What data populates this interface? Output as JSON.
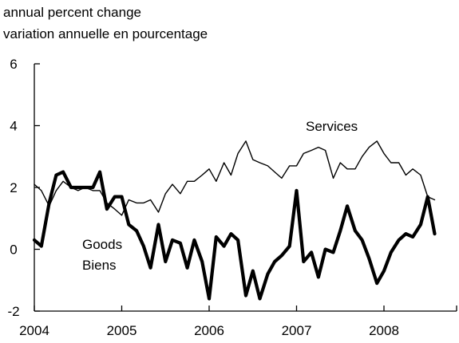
{
  "chart_data": {
    "type": "line",
    "title": "",
    "unit_label_en": "annual percent change",
    "unit_label_fr": "variation annuelle en pourcentage",
    "xlabel": "",
    "ylabel": "",
    "xlim": [
      2004.0,
      2008.85
    ],
    "ylim": [
      -2,
      6
    ],
    "x_ticks": [
      2004,
      2005,
      2006,
      2007,
      2008
    ],
    "x_tick_labels": [
      "2004",
      "2005",
      "2006",
      "2007",
      "2008"
    ],
    "y_ticks": [
      -2,
      0,
      2,
      4,
      6
    ],
    "y_tick_labels": [
      "-2",
      "0",
      "2",
      "4",
      "6"
    ],
    "grid": false,
    "legend": "none",
    "series": [
      {
        "name": "Services",
        "label_lines": [
          "Services"
        ],
        "line_weight": "thin",
        "color": "#000000",
        "points": [
          [
            2004.0,
            2.1
          ],
          [
            2004.08,
            1.9
          ],
          [
            2004.17,
            1.4
          ],
          [
            2004.25,
            1.9
          ],
          [
            2004.33,
            2.2
          ],
          [
            2004.42,
            2.0
          ],
          [
            2004.5,
            1.9
          ],
          [
            2004.58,
            2.0
          ],
          [
            2004.67,
            1.9
          ],
          [
            2004.75,
            1.9
          ],
          [
            2004.83,
            1.5
          ],
          [
            2004.92,
            1.3
          ],
          [
            2005.0,
            1.1
          ],
          [
            2005.08,
            1.6
          ],
          [
            2005.17,
            1.5
          ],
          [
            2005.25,
            1.5
          ],
          [
            2005.33,
            1.6
          ],
          [
            2005.42,
            1.2
          ],
          [
            2005.5,
            1.8
          ],
          [
            2005.58,
            2.1
          ],
          [
            2005.67,
            1.8
          ],
          [
            2005.75,
            2.2
          ],
          [
            2005.83,
            2.2
          ],
          [
            2005.92,
            2.4
          ],
          [
            2006.0,
            2.6
          ],
          [
            2006.08,
            2.2
          ],
          [
            2006.17,
            2.8
          ],
          [
            2006.25,
            2.4
          ],
          [
            2006.33,
            3.1
          ],
          [
            2006.42,
            3.5
          ],
          [
            2006.5,
            2.9
          ],
          [
            2006.58,
            2.8
          ],
          [
            2006.67,
            2.7
          ],
          [
            2006.75,
            2.5
          ],
          [
            2006.83,
            2.3
          ],
          [
            2006.92,
            2.7
          ],
          [
            2007.0,
            2.7
          ],
          [
            2007.08,
            3.1
          ],
          [
            2007.17,
            3.2
          ],
          [
            2007.25,
            3.3
          ],
          [
            2007.33,
            3.2
          ],
          [
            2007.42,
            2.3
          ],
          [
            2007.5,
            2.8
          ],
          [
            2007.58,
            2.6
          ],
          [
            2007.67,
            2.6
          ],
          [
            2007.75,
            3.0
          ],
          [
            2007.83,
            3.3
          ],
          [
            2007.92,
            3.5
          ],
          [
            2008.0,
            3.1
          ],
          [
            2008.08,
            2.8
          ],
          [
            2008.17,
            2.8
          ],
          [
            2008.25,
            2.4
          ],
          [
            2008.33,
            2.6
          ],
          [
            2008.42,
            2.4
          ],
          [
            2008.5,
            1.7
          ],
          [
            2008.58,
            1.6
          ]
        ]
      },
      {
        "name": "Goods",
        "label_lines": [
          "Goods",
          "Biens"
        ],
        "line_weight": "thick",
        "color": "#000000",
        "points": [
          [
            2004.0,
            0.3
          ],
          [
            2004.08,
            0.1
          ],
          [
            2004.17,
            1.5
          ],
          [
            2004.25,
            2.4
          ],
          [
            2004.33,
            2.5
          ],
          [
            2004.42,
            2.0
          ],
          [
            2004.5,
            2.0
          ],
          [
            2004.58,
            2.0
          ],
          [
            2004.67,
            2.0
          ],
          [
            2004.75,
            2.5
          ],
          [
            2004.83,
            1.3
          ],
          [
            2004.92,
            1.7
          ],
          [
            2005.0,
            1.7
          ],
          [
            2005.08,
            0.8
          ],
          [
            2005.17,
            0.6
          ],
          [
            2005.25,
            0.1
          ],
          [
            2005.33,
            -0.6
          ],
          [
            2005.42,
            0.8
          ],
          [
            2005.5,
            -0.4
          ],
          [
            2005.58,
            0.3
          ],
          [
            2005.67,
            0.2
          ],
          [
            2005.75,
            -0.6
          ],
          [
            2005.83,
            0.3
          ],
          [
            2005.92,
            -0.4
          ],
          [
            2006.0,
            -1.6
          ],
          [
            2006.08,
            0.4
          ],
          [
            2006.17,
            0.1
          ],
          [
            2006.25,
            0.5
          ],
          [
            2006.33,
            0.3
          ],
          [
            2006.42,
            -1.5
          ],
          [
            2006.5,
            -0.7
          ],
          [
            2006.58,
            -1.6
          ],
          [
            2006.67,
            -0.8
          ],
          [
            2006.75,
            -0.4
          ],
          [
            2006.83,
            -0.2
          ],
          [
            2006.92,
            0.1
          ],
          [
            2007.0,
            1.9
          ],
          [
            2007.08,
            -0.4
          ],
          [
            2007.17,
            -0.1
          ],
          [
            2007.25,
            -0.9
          ],
          [
            2007.33,
            0.0
          ],
          [
            2007.42,
            -0.1
          ],
          [
            2007.5,
            0.6
          ],
          [
            2007.58,
            1.4
          ],
          [
            2007.67,
            0.6
          ],
          [
            2007.75,
            0.3
          ],
          [
            2007.83,
            -0.3
          ],
          [
            2007.92,
            -1.1
          ],
          [
            2008.0,
            -0.7
          ],
          [
            2008.08,
            -0.1
          ],
          [
            2008.17,
            0.3
          ],
          [
            2008.25,
            0.5
          ],
          [
            2008.33,
            0.4
          ],
          [
            2008.42,
            0.8
          ],
          [
            2008.5,
            1.7
          ],
          [
            2008.58,
            0.5
          ]
        ]
      }
    ]
  }
}
